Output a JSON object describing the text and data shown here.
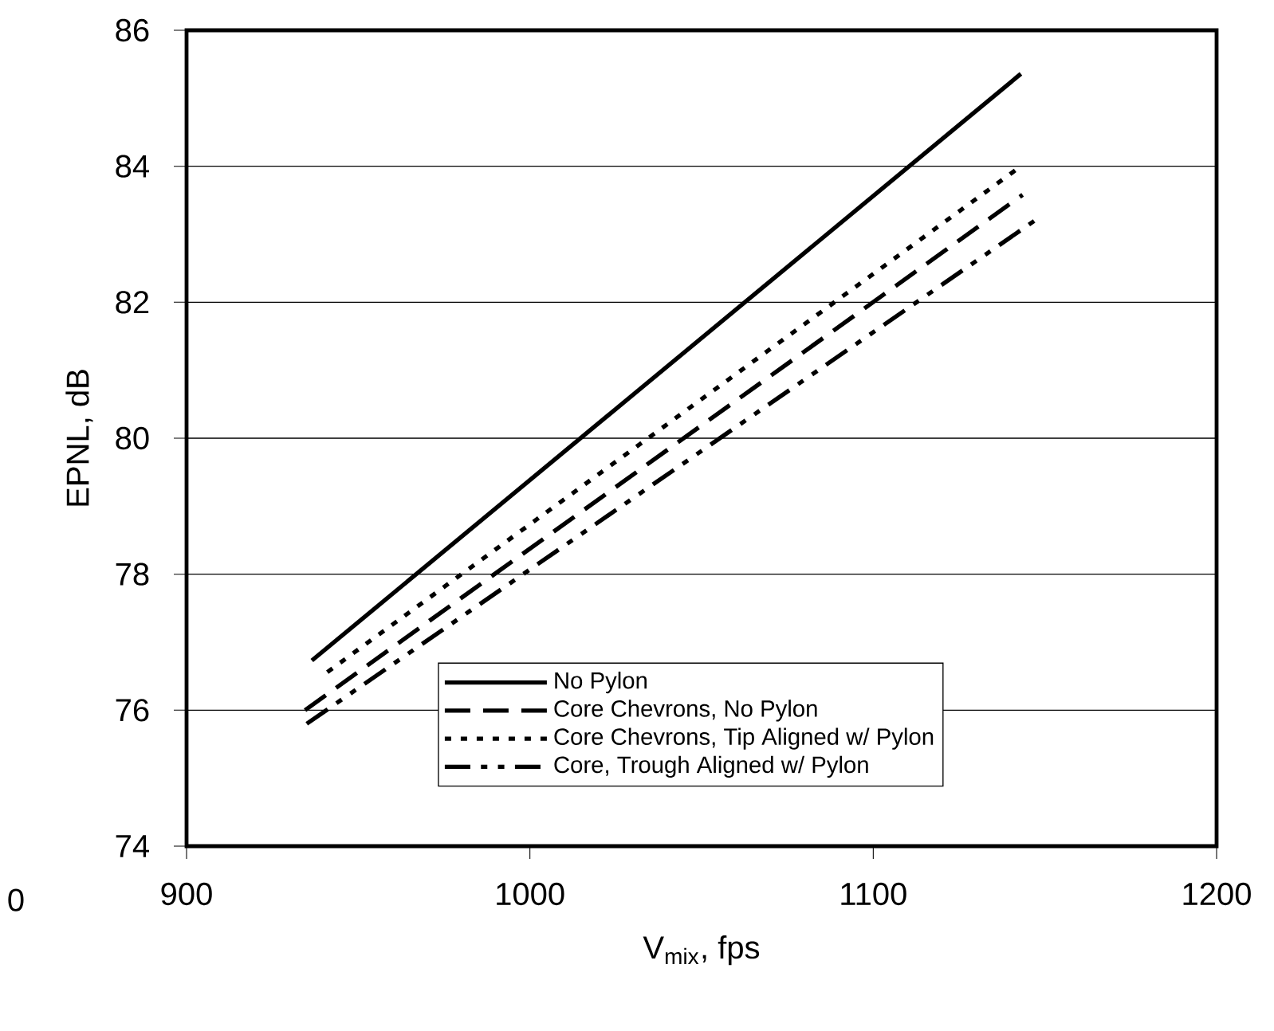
{
  "chart_data": {
    "type": "line",
    "xlabel": "V$_{mix}$, fps",
    "ylabel": "EPNL, dB",
    "xlim": [
      900,
      1200
    ],
    "xticks": [
      900,
      1000,
      1100,
      1200
    ],
    "ylim": [
      74,
      86
    ],
    "yticks": [
      74,
      76,
      78,
      80,
      82,
      84,
      86
    ],
    "grid": "y",
    "legend": "bottom right",
    "marker": "none",
    "annotations": [
      "0"
    ],
    "series": [
      {
        "name": "No Pylon",
        "color": "#000000",
        "line_style": "solid",
        "x": [
          936.5,
          1143
        ],
        "values": [
          76.73,
          85.36
        ]
      },
      {
        "name": "Core Chevrons, No Pylon",
        "color": "#000000",
        "line_style": "dashed",
        "x": [
          934.5,
          1143.5
        ],
        "values": [
          76.0,
          83.58
        ]
      },
      {
        "name": "Core Chevrons, Tip Aligned w/ Pylon",
        "color": "#000000",
        "line_style": "dotted",
        "x": [
          941,
          1143
        ],
        "values": [
          76.56,
          84.0
        ]
      },
      {
        "name": "Core, Trough Aligned w/ Pylon",
        "color": "#000000",
        "line_style": "dashdotted",
        "x": [
          935,
          1147
        ],
        "values": [
          75.8,
          83.2
        ]
      }
    ]
  }
}
